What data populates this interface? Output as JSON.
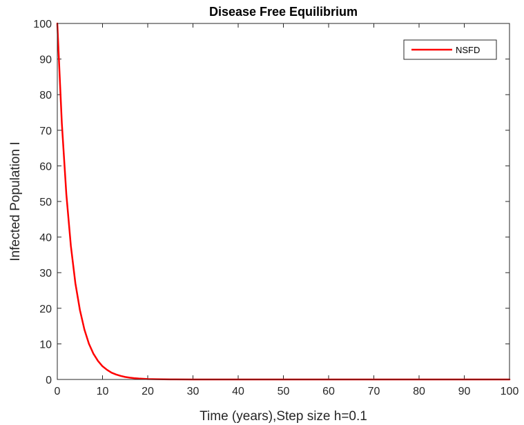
{
  "chart_data": {
    "type": "line",
    "title": "Disease Free Equilibrium",
    "xlabel": "Time (years),Step size h=0.1",
    "ylabel": "Infected Population I",
    "xlim": [
      0,
      100
    ],
    "ylim": [
      0,
      100
    ],
    "xticks": [
      0,
      10,
      20,
      30,
      40,
      50,
      60,
      70,
      80,
      90,
      100
    ],
    "yticks": [
      0,
      10,
      20,
      30,
      40,
      50,
      60,
      70,
      80,
      90,
      100
    ],
    "grid": false,
    "legend_position": "top-right",
    "series": [
      {
        "name": "NSFD",
        "color": "#ff0000",
        "x": [
          0,
          1,
          2,
          3,
          4,
          5,
          6,
          7,
          8,
          9,
          10,
          11,
          12,
          13,
          14,
          15,
          16,
          17,
          18,
          19,
          20,
          22,
          25,
          30,
          40,
          50,
          60,
          70,
          80,
          90,
          100
        ],
        "y": [
          100,
          72,
          52,
          37.5,
          27,
          19.5,
          14,
          10,
          7.2,
          5.2,
          3.7,
          2.7,
          1.9,
          1.4,
          1.0,
          0.7,
          0.5,
          0.36,
          0.26,
          0.19,
          0.13,
          0.07,
          0.03,
          0.005,
          0,
          0,
          0,
          0,
          0,
          0,
          0
        ]
      }
    ]
  }
}
